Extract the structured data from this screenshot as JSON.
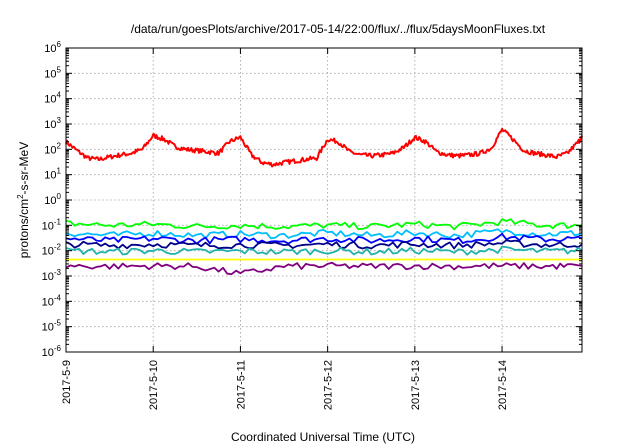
{
  "chart_data": {
    "type": "line",
    "title": "/data/run/goesPlots/archive/2017-05-14/22:00/flux/../flux/5daysMoonFluxes.txt",
    "xlabel": "Coordinated Universal Time (UTC)",
    "ylabel_parts": {
      "base": "protons/cm",
      "sup": "2",
      "rest": "-s-sr-MeV"
    },
    "xlim": [
      "2017-05-09",
      "2017-05-14T22:00"
    ],
    "x_ticks": [
      "2017-5-9",
      "2017-5-10",
      "2017-5-11",
      "2017-5-12",
      "2017-5-13",
      "2017-5-14"
    ],
    "y_scale": "log",
    "ylim": [
      1e-06,
      1000000.0
    ],
    "y_ticks": [
      {
        "base": "10",
        "exp": "-6"
      },
      {
        "base": "10",
        "exp": "-5"
      },
      {
        "base": "10",
        "exp": "-4"
      },
      {
        "base": "10",
        "exp": "-3"
      },
      {
        "base": "10",
        "exp": "-2"
      },
      {
        "base": "10",
        "exp": "-1"
      },
      {
        "base": "10",
        "exp": "0"
      },
      {
        "base": "10",
        "exp": "1"
      },
      {
        "base": "10",
        "exp": "2"
      },
      {
        "base": "10",
        "exp": "3"
      },
      {
        "base": "10",
        "exp": "4"
      },
      {
        "base": "10",
        "exp": "5"
      },
      {
        "base": "10",
        "exp": "6"
      }
    ],
    "grid": true,
    "legend": "none",
    "series": [
      {
        "color": "#ff0000",
        "x": [
          "2017-05-09T00:00",
          "2017-05-09T03:00",
          "2017-05-09T06:00",
          "2017-05-09T09:00",
          "2017-05-09T12:00",
          "2017-05-09T15:00",
          "2017-05-09T18:00",
          "2017-05-09T21:00",
          "2017-05-10T00:00",
          "2017-05-10T03:00",
          "2017-05-10T06:00",
          "2017-05-10T09:00",
          "2017-05-10T12:00",
          "2017-05-10T15:00",
          "2017-05-10T18:00",
          "2017-05-10T21:00",
          "2017-05-11T00:00",
          "2017-05-11T03:00",
          "2017-05-11T06:00",
          "2017-05-11T09:00",
          "2017-05-11T12:00",
          "2017-05-11T15:00",
          "2017-05-11T18:00",
          "2017-05-11T21:00",
          "2017-05-12T00:00",
          "2017-05-12T03:00",
          "2017-05-12T06:00",
          "2017-05-12T09:00",
          "2017-05-12T12:00",
          "2017-05-12T15:00",
          "2017-05-12T18:00",
          "2017-05-12T21:00",
          "2017-05-13T00:00",
          "2017-05-13T03:00",
          "2017-05-13T06:00",
          "2017-05-13T09:00",
          "2017-05-13T12:00",
          "2017-05-13T15:00",
          "2017-05-13T18:00",
          "2017-05-13T21:00",
          "2017-05-14T00:00",
          "2017-05-14T03:00",
          "2017-05-14T06:00",
          "2017-05-14T09:00",
          "2017-05-14T12:00",
          "2017-05-14T15:00",
          "2017-05-14T18:00",
          "2017-05-14T21:00",
          "2017-05-14T22:00"
        ],
        "values": [
          200,
          90,
          45,
          40,
          50,
          60,
          70,
          100,
          350,
          250,
          130,
          100,
          90,
          80,
          70,
          200,
          300,
          60,
          30,
          25,
          30,
          35,
          40,
          45,
          250,
          200,
          80,
          60,
          55,
          60,
          70,
          120,
          300,
          200,
          80,
          60,
          55,
          60,
          70,
          110,
          600,
          250,
          90,
          70,
          60,
          50,
          70,
          200,
          300
        ]
      },
      {
        "color": "#00ff00",
        "x": [
          "2017-05-09T00:00",
          "2017-05-09T12:00",
          "2017-05-10T00:00",
          "2017-05-10T12:00",
          "2017-05-11T00:00",
          "2017-05-11T12:00",
          "2017-05-12T00:00",
          "2017-05-12T12:00",
          "2017-05-13T00:00",
          "2017-05-13T12:00",
          "2017-05-14T00:00",
          "2017-05-14T12:00",
          "2017-05-14T22:00"
        ],
        "values": [
          0.12,
          0.1,
          0.11,
          0.09,
          0.1,
          0.09,
          0.1,
          0.09,
          0.11,
          0.09,
          0.14,
          0.1,
          0.1
        ]
      },
      {
        "color": "#00bfff",
        "x": [
          "2017-05-09T00:00",
          "2017-05-09T12:00",
          "2017-05-10T00:00",
          "2017-05-10T12:00",
          "2017-05-11T00:00",
          "2017-05-11T12:00",
          "2017-05-12T00:00",
          "2017-05-12T12:00",
          "2017-05-13T00:00",
          "2017-05-13T12:00",
          "2017-05-14T00:00",
          "2017-05-14T12:00",
          "2017-05-14T22:00"
        ],
        "values": [
          0.05,
          0.04,
          0.05,
          0.04,
          0.045,
          0.04,
          0.05,
          0.04,
          0.05,
          0.04,
          0.06,
          0.045,
          0.05
        ]
      },
      {
        "color": "#0000ff",
        "x": [
          "2017-05-09T00:00",
          "2017-05-09T12:00",
          "2017-05-10T00:00",
          "2017-05-10T12:00",
          "2017-05-11T00:00",
          "2017-05-11T12:00",
          "2017-05-12T00:00",
          "2017-05-12T12:00",
          "2017-05-13T00:00",
          "2017-05-13T12:00",
          "2017-05-14T00:00",
          "2017-05-14T12:00",
          "2017-05-14T22:00"
        ],
        "values": [
          0.03,
          0.025,
          0.03,
          0.025,
          0.028,
          0.025,
          0.03,
          0.025,
          0.03,
          0.025,
          0.035,
          0.028,
          0.03
        ]
      },
      {
        "color": "#00008b",
        "x": [
          "2017-05-09T00:00",
          "2017-05-09T12:00",
          "2017-05-10T00:00",
          "2017-05-10T12:00",
          "2017-05-11T00:00",
          "2017-05-11T12:00",
          "2017-05-12T00:00",
          "2017-05-12T12:00",
          "2017-05-13T00:00",
          "2017-05-13T12:00",
          "2017-05-14T00:00",
          "2017-05-14T12:00",
          "2017-05-14T22:00"
        ],
        "values": [
          0.018,
          0.016,
          0.018,
          0.016,
          0.017,
          0.016,
          0.018,
          0.016,
          0.018,
          0.016,
          0.02,
          0.017,
          0.018
        ]
      },
      {
        "color": "#20b2aa",
        "x": [
          "2017-05-09T00:00",
          "2017-05-09T12:00",
          "2017-05-10T00:00",
          "2017-05-10T12:00",
          "2017-05-11T00:00",
          "2017-05-11T12:00",
          "2017-05-12T00:00",
          "2017-05-12T12:00",
          "2017-05-13T00:00",
          "2017-05-13T12:00",
          "2017-05-14T00:00",
          "2017-05-14T12:00",
          "2017-05-14T22:00"
        ],
        "values": [
          0.01,
          0.009,
          0.01,
          0.009,
          0.0095,
          0.009,
          0.01,
          0.009,
          0.01,
          0.009,
          0.011,
          0.0095,
          0.01
        ]
      },
      {
        "color": "#ffff00",
        "x": [
          "2017-05-09T00:00",
          "2017-05-10T00:00",
          "2017-05-11T00:00",
          "2017-05-12T00:00",
          "2017-05-13T00:00",
          "2017-05-14T00:00",
          "2017-05-14T22:00"
        ],
        "values": [
          0.0045,
          0.0045,
          0.0045,
          0.0045,
          0.0045,
          0.0045,
          0.0045
        ]
      },
      {
        "color": "#800080",
        "x": [
          "2017-05-09T00:00",
          "2017-05-09T12:00",
          "2017-05-10T00:00",
          "2017-05-10T12:00",
          "2017-05-11T00:00",
          "2017-05-11T12:00",
          "2017-05-12T00:00",
          "2017-05-12T12:00",
          "2017-05-13T00:00",
          "2017-05-13T12:00",
          "2017-05-14T00:00",
          "2017-05-14T12:00",
          "2017-05-14T22:00"
        ],
        "values": [
          0.0025,
          0.0024,
          0.0025,
          0.0024,
          0.0012,
          0.0024,
          0.0025,
          0.0024,
          0.0025,
          0.0024,
          0.0025,
          0.0024,
          0.0025
        ]
      }
    ]
  }
}
